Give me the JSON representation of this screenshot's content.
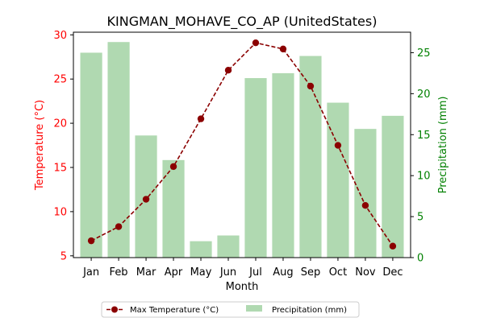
{
  "chart_data": {
    "type": "bar+line",
    "title": "KINGMAN_MOHAVE_CO_AP (UnitedStates)",
    "xlabel": "Month",
    "ylabel_left": "Temperature (°C)",
    "ylabel_right": "Precipitation (mm)",
    "categories": [
      "Jan",
      "Feb",
      "Mar",
      "Apr",
      "May",
      "Jun",
      "Jul",
      "Aug",
      "Sep",
      "Oct",
      "Nov",
      "Dec"
    ],
    "ylim_left": [
      4.8,
      30.3
    ],
    "ylim_right": [
      0,
      27.5
    ],
    "yticks_left": [
      "5",
      "10",
      "15",
      "20",
      "25",
      "30"
    ],
    "yticks_right": [
      "0",
      "5",
      "10",
      "15",
      "20",
      "25"
    ],
    "series": [
      {
        "name": "Max Temperature (°C)",
        "type": "line",
        "axis": "left",
        "color": "#8b0000",
        "values": [
          6.7,
          8.3,
          11.4,
          15.1,
          20.5,
          26.0,
          29.1,
          28.4,
          24.2,
          17.5,
          10.7,
          6.1
        ]
      },
      {
        "name": "Precipitation (mm)",
        "type": "bar",
        "axis": "right",
        "color": "#b0d9b1",
        "values": [
          25.0,
          26.3,
          14.9,
          11.9,
          2.0,
          2.7,
          21.9,
          22.5,
          24.6,
          18.9,
          15.7,
          17.3
        ]
      }
    ],
    "legend_position": "bottom-center",
    "colors": {
      "left_axis": "#ff0000",
      "right_axis": "#008000",
      "line": "#8b0000",
      "bars": "#b0d9b1"
    }
  }
}
